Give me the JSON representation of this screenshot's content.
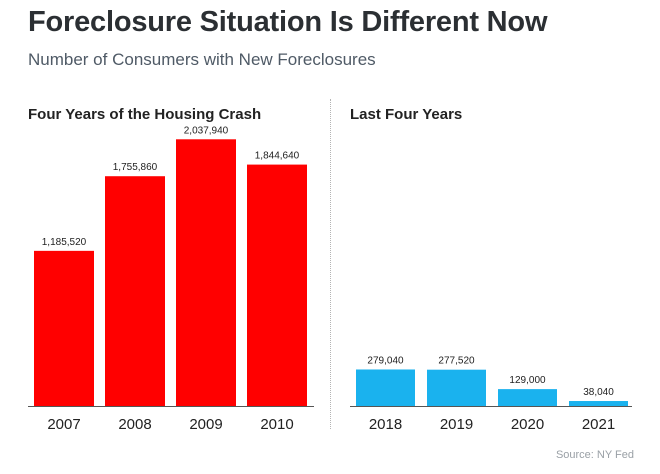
{
  "header": {
    "title": "Foreclosure Situation Is Different Now",
    "subtitle": "Number of Consumers with New Foreclosures"
  },
  "footer": {
    "source": "Source: NY Fed"
  },
  "colors": {
    "left_bars": "#ff0000",
    "right_bars": "#1ab2ee",
    "title_text": "#2b2f33",
    "subtitle_text": "#4f5a66"
  },
  "chart_data": [
    {
      "type": "bar",
      "title": "Four Years of the Housing Crash",
      "categories": [
        "2007",
        "2008",
        "2009",
        "2010"
      ],
      "values": [
        1185520,
        1755860,
        2037940,
        1844640
      ],
      "value_labels": [
        "1,185,520",
        "1,755,860",
        "2,037,940",
        "1,844,640"
      ],
      "xlabel": "",
      "ylabel": "",
      "ylim": [
        0,
        2300000
      ],
      "grid": false,
      "color": "#ff0000"
    },
    {
      "type": "bar",
      "title": "Last Four Years",
      "categories": [
        "2018",
        "2019",
        "2020",
        "2021"
      ],
      "values": [
        279040,
        277520,
        129000,
        38040
      ],
      "value_labels": [
        "279,040",
        "277,520",
        "129,000",
        "38,040"
      ],
      "xlabel": "",
      "ylabel": "",
      "ylim": [
        0,
        2300000
      ],
      "grid": false,
      "color": "#1ab2ee"
    }
  ]
}
